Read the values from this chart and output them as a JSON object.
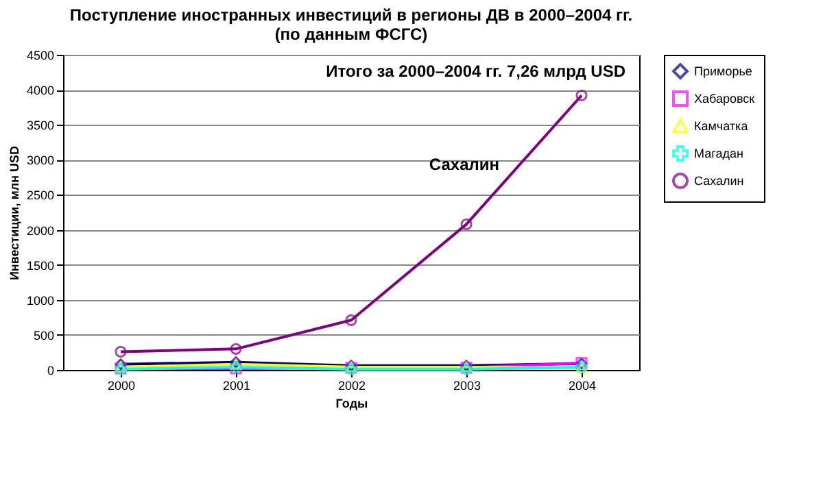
{
  "chart_data": {
    "type": "line",
    "title": [
      "Поступление иностранных инвестиций в регионы ДВ в 2000–2004 гг.",
      "(по данным ФСГС)"
    ],
    "xlabel": "Годы",
    "ylabel": "Инвестиции, млн  USD",
    "categories": [
      "2000",
      "2001",
      "2002",
      "2003",
      "2004"
    ],
    "series": [
      {
        "name": "Приморье",
        "color": "#000080",
        "marker": "diamond",
        "values": [
          80,
          110,
          60,
          60,
          90
        ]
      },
      {
        "name": "Хабаровск",
        "color": "#ff00ff",
        "marker": "square",
        "values": [
          20,
          20,
          30,
          30,
          100
        ]
      },
      {
        "name": "Камчатка",
        "color": "#ffff00",
        "marker": "triangle",
        "values": [
          40,
          80,
          40,
          40,
          30
        ]
      },
      {
        "name": "Магадан",
        "color": "#00ffff",
        "marker": "cross",
        "values": [
          10,
          40,
          10,
          10,
          40
        ]
      },
      {
        "name": "Сахалин",
        "color": "#800080",
        "marker": "circle",
        "values": [
          260,
          300,
          710,
          2080,
          3920
        ]
      }
    ],
    "ylim": [
      0,
      4500
    ],
    "yticks": [
      0,
      500,
      1000,
      1500,
      2000,
      2500,
      3000,
      3500,
      4000,
      4500
    ],
    "grid": "y",
    "legend": "right",
    "annotations": [
      "Итого за 2000–2004 гг. 7,26 млрд USD",
      "Сахалин"
    ]
  }
}
